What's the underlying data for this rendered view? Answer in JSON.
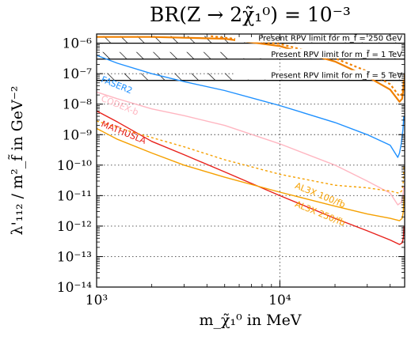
{
  "chart_data": {
    "type": "line",
    "title": "BR(Z → 2χ̃₁⁰) = 10⁻³",
    "xlabel": "m_χ̃₁⁰ in MeV",
    "ylabel": "λ'₁₁₂ / m²_f̃ in GeV⁻²",
    "xscale": "log",
    "yscale": "log",
    "xlim": [
      1000,
      48000
    ],
    "ylim": [
      1e-14,
      2e-06
    ],
    "grid": "dotted",
    "x_ticks": [
      {
        "value": 1000,
        "label": "10³"
      },
      {
        "value": 10000,
        "label": "10⁴"
      }
    ],
    "y_ticks": [
      {
        "value": 1e-14,
        "label": "10⁻¹⁴"
      },
      {
        "value": 1e-13,
        "label": "10⁻¹³"
      },
      {
        "value": 1e-12,
        "label": "10⁻¹²"
      },
      {
        "value": 1e-11,
        "label": "10⁻¹¹"
      },
      {
        "value": 1e-10,
        "label": "10⁻¹⁰"
      },
      {
        "value": 1e-09,
        "label": "10⁻⁹"
      },
      {
        "value": 1e-08,
        "label": "10⁻⁸"
      },
      {
        "value": 1e-07,
        "label": "10⁻⁷"
      },
      {
        "value": 1e-06,
        "label": "10⁻⁶"
      }
    ],
    "rpv_limits": [
      {
        "label": "Present RPV limit for m_f̃ = 250 GeV",
        "value": 1e-06
      },
      {
        "label": "Present RPV limit for m_f̃ = 1 TeV",
        "value": 3e-07
      },
      {
        "label": "Present RPV limit for m_f̃ = 5 TeV",
        "value": 6e-08
      }
    ],
    "series": [
      {
        "name": "FASER2",
        "color": "#1e90ff",
        "label_at": [
          1050,
          5.5e-08
        ],
        "label_angle": 22,
        "points": [
          [
            1000,
            4e-07
          ],
          [
            1300,
            2.2e-07
          ],
          [
            2000,
            1e-07
          ],
          [
            3000,
            5.5e-08
          ],
          [
            5000,
            2.8e-08
          ],
          [
            10000,
            9e-09
          ],
          [
            20000,
            2.5e-09
          ],
          [
            30000,
            1e-09
          ],
          [
            40000,
            4.5e-10
          ],
          [
            44000,
            1.8e-10
          ],
          [
            45000,
            2.5e-10
          ],
          [
            46000,
            5e-10
          ],
          [
            47000,
            1.5e-09
          ],
          [
            47500,
            4e-09
          ]
        ]
      },
      {
        "name": "CODEX-b",
        "color": "#ffb6c1",
        "label_at": [
          1050,
          1.3e-08
        ],
        "label_angle": 22,
        "points": [
          [
            1000,
            2.5e-08
          ],
          [
            1300,
            1.5e-08
          ],
          [
            2000,
            7e-09
          ],
          [
            3000,
            4.2e-09
          ],
          [
            5000,
            2e-09
          ],
          [
            10000,
            5e-10
          ],
          [
            20000,
            1e-10
          ],
          [
            30000,
            3e-11
          ],
          [
            40000,
            1.2e-11
          ],
          [
            44000,
            5e-12
          ],
          [
            46000,
            6e-12
          ],
          [
            47000,
            1e-11
          ],
          [
            47500,
            2e-11
          ]
        ]
      },
      {
        "name": "MATHUSLA",
        "color": "#e8211b",
        "label_at": [
          1050,
          1.9e-09
        ],
        "label_angle": 22,
        "points": [
          [
            1000,
            6e-09
          ],
          [
            1300,
            2.6e-09
          ],
          [
            2000,
            6e-10
          ],
          [
            3000,
            2.2e-10
          ],
          [
            5000,
            6e-11
          ],
          [
            10000,
            1e-11
          ],
          [
            20000,
            1.8e-12
          ],
          [
            30000,
            7e-13
          ],
          [
            40000,
            3.5e-13
          ],
          [
            45000,
            2.5e-13
          ],
          [
            46500,
            2.8e-13
          ],
          [
            47200,
            4e-13
          ],
          [
            47600,
            1e-12
          ]
        ]
      },
      {
        "name": "AL3X 100/fb",
        "color": "#f5a000",
        "dashed": true,
        "label_at": [
          12000,
          1.8e-11
        ],
        "label_angle": 22,
        "points": [
          [
            1000,
            2.8e-09
          ],
          [
            1300,
            1.7e-09
          ],
          [
            2000,
            8e-10
          ],
          [
            3000,
            4e-10
          ],
          [
            5000,
            1.5e-10
          ],
          [
            10000,
            5e-11
          ],
          [
            20000,
            2.2e-11
          ],
          [
            30000,
            1.8e-11
          ],
          [
            40000,
            1.4e-11
          ],
          [
            45000,
            1.2e-11
          ],
          [
            46500,
            1.5e-11
          ],
          [
            47200,
            3e-11
          ],
          [
            47600,
            1e-10
          ]
        ]
      },
      {
        "name": "AL3X 250/fb",
        "color": "#f5a000",
        "dashed": false,
        "label_at": [
          12000,
          4.5e-12
        ],
        "label_angle": 22,
        "points": [
          [
            1000,
            1.6e-09
          ],
          [
            1300,
            7e-10
          ],
          [
            2000,
            2.5e-10
          ],
          [
            3000,
            1e-10
          ],
          [
            5000,
            4e-11
          ],
          [
            10000,
            1.3e-11
          ],
          [
            20000,
            4.5e-12
          ],
          [
            30000,
            2.5e-12
          ],
          [
            40000,
            1.8e-12
          ],
          [
            45000,
            1.5e-12
          ],
          [
            46500,
            1.8e-12
          ],
          [
            47200,
            3e-12
          ],
          [
            47600,
            1e-11
          ]
        ]
      },
      {
        "name": "",
        "color": "#f08000",
        "dashed": false,
        "width": 2.2,
        "points": [
          [
            1000,
            1.6e-06
          ],
          [
            2000,
            1.6e-06
          ],
          [
            5000,
            1.4e-06
          ],
          [
            10000,
            8e-07
          ],
          [
            20000,
            2.5e-07
          ],
          [
            30000,
            8e-08
          ],
          [
            40000,
            3e-08
          ],
          [
            45000,
            1.2e-08
          ],
          [
            46500,
            1.5e-08
          ],
          [
            47200,
            3e-08
          ],
          [
            47600,
            1e-07
          ]
        ]
      },
      {
        "name": "",
        "color": "#f08000",
        "dashed": true,
        "width": 2.2,
        "points": [
          [
            4200,
            1.7e-06
          ],
          [
            10000,
            9.5e-07
          ],
          [
            20000,
            3.2e-07
          ],
          [
            30000,
            1.2e-07
          ],
          [
            40000,
            4.5e-08
          ],
          [
            45000,
            1.8e-08
          ],
          [
            46500,
            2.2e-08
          ],
          [
            47200,
            4e-08
          ]
        ]
      }
    ]
  }
}
